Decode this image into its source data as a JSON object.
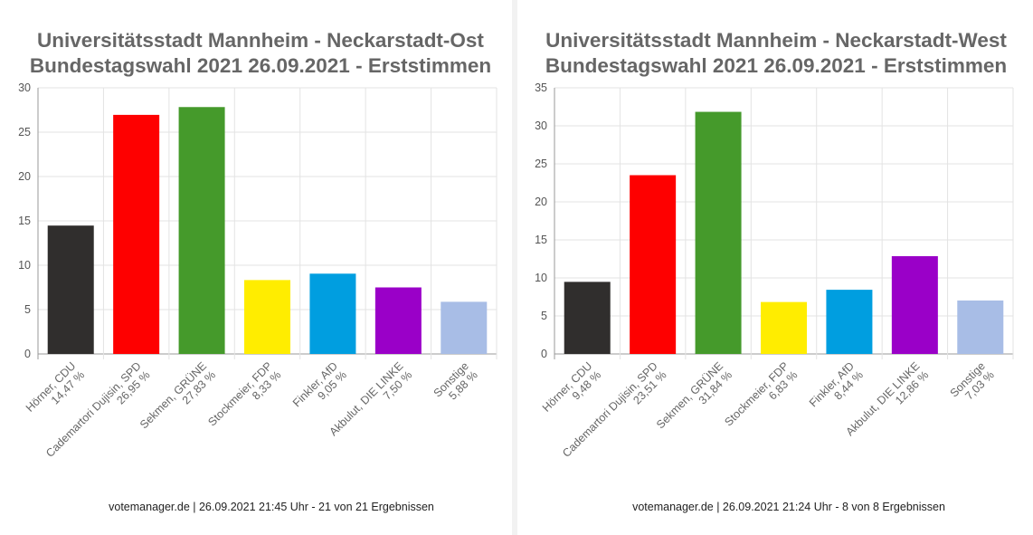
{
  "chart_data": [
    {
      "type": "bar",
      "title": [
        "Universitätsstadt Mannheim - Neckarstadt-Ost",
        "Bundestagswahl 2021 26.09.2021  - Erststimmen"
      ],
      "categories": [
        "Hörner, CDU",
        "Cademartori Dujisin, SPD",
        "Sekmen, GRÜNE",
        "Stockmeier, FDP",
        "Finkler, AfD",
        "Akbulut, DIE LINKE",
        "Sonstige"
      ],
      "value_labels": [
        "14,47 %",
        "26,95 %",
        "27,83 %",
        "8,33 %",
        "9,05 %",
        "7,50 %",
        "5,88 %"
      ],
      "values": [
        14.47,
        26.95,
        27.83,
        8.33,
        9.05,
        7.5,
        5.88
      ],
      "colors": [
        "#302e2d",
        "#fe0000",
        "#459a2b",
        "#ffed00",
        "#009ee0",
        "#9a00c8",
        "#a8bde6"
      ],
      "ylim": [
        0,
        30
      ],
      "yticks": [
        0,
        5,
        10,
        15,
        20,
        25,
        30
      ],
      "grid": true,
      "footer": "votemanager.de | 26.09.2021 21:45 Uhr - 21 von 21 Ergebnissen"
    },
    {
      "type": "bar",
      "title": [
        "Universitätsstadt Mannheim - Neckarstadt-West",
        "Bundestagswahl 2021 26.09.2021  - Erststimmen"
      ],
      "categories": [
        "Hörner, CDU",
        "Cademartori Dujisin, SPD",
        "Sekmen, GRÜNE",
        "Stockmeier, FDP",
        "Finkler, AfD",
        "Akbulut, DIE LINKE",
        "Sonstige"
      ],
      "value_labels": [
        "9,48 %",
        "23,51 %",
        "31,84 %",
        "6,83 %",
        "8,44 %",
        "12,86 %",
        "7,03 %"
      ],
      "values": [
        9.48,
        23.51,
        31.84,
        6.83,
        8.44,
        12.86,
        7.03
      ],
      "colors": [
        "#302e2d",
        "#fe0000",
        "#459a2b",
        "#ffed00",
        "#009ee0",
        "#9a00c8",
        "#a8bde6"
      ],
      "ylim": [
        0,
        35
      ],
      "yticks": [
        0,
        5,
        10,
        15,
        20,
        25,
        30,
        35
      ],
      "grid": true,
      "footer": "votemanager.de | 26.09.2021 21:24 Uhr - 8 von 8 Ergebnissen"
    }
  ]
}
